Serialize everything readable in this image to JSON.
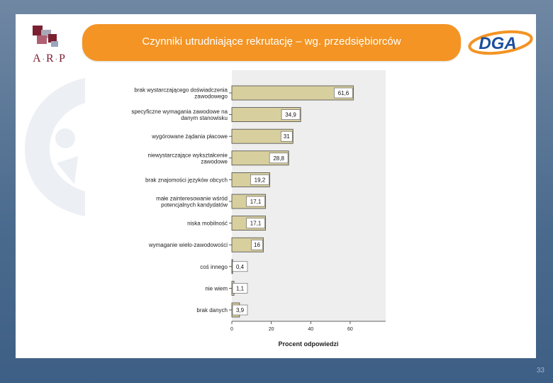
{
  "slide": {
    "title": "Czynniki utrudniające rekrutację – wg. przedsiębiorców",
    "page_number": "33",
    "arp_logo_letters": [
      "A",
      "R",
      "P"
    ],
    "dga_logo_text": "DGA"
  },
  "colors": {
    "bar_fill": "#d8cf9f",
    "bar_stroke": "#4a4a4a",
    "plot_bg": "#eeeeee",
    "title_bg": "#f39424"
  },
  "chart_data": {
    "type": "bar",
    "orientation": "horizontal",
    "categories": [
      "brak wystarczającego doświadczenia zawodowego",
      "specyficzne wymagania zawodowe na danym stanowisku",
      "wygórowane żądania płacowe",
      "niewystarczające wykształcenie zawodowe",
      "brak znajomości języków obcych",
      "małe zainteresowanie wśród potencjalnych kandydatów",
      "niska mobilność",
      "wymaganie wielo-zawodowości",
      "coś innego",
      "nie wiem",
      "brak danych"
    ],
    "value_labels": [
      "61,6",
      "34,9",
      "31",
      "28,8",
      "19,2",
      "17,1",
      "17,1",
      "16",
      "0,4",
      "1,1",
      "3,9"
    ],
    "values": [
      61.6,
      34.9,
      31,
      28.8,
      19.2,
      17.1,
      17.1,
      16,
      0.4,
      1.1,
      3.9
    ],
    "xlim": [
      0,
      78
    ],
    "xticks": [
      0,
      20,
      40,
      60
    ],
    "xlabel": "Procent odpowiedzi",
    "ylabel": "",
    "grid": false
  }
}
